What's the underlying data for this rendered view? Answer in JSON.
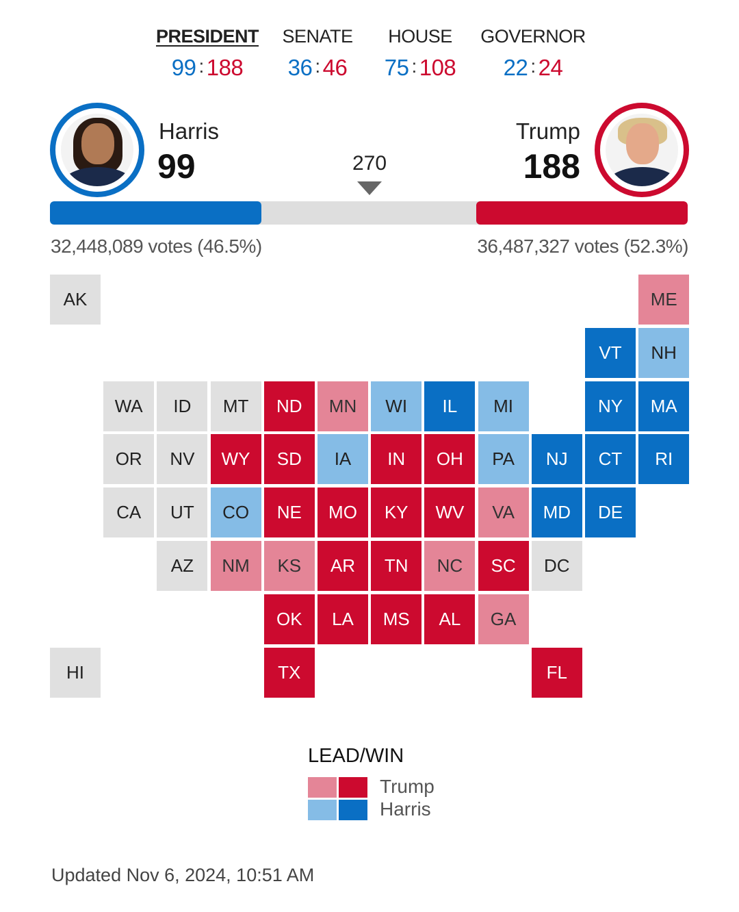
{
  "tabs": [
    {
      "label": "PRESIDENT",
      "dem": "99",
      "rep": "188",
      "active": true
    },
    {
      "label": "SENATE",
      "dem": "36",
      "rep": "46"
    },
    {
      "label": "HOUSE",
      "dem": "75",
      "rep": "108"
    },
    {
      "label": "GOVERNOR",
      "dem": "22",
      "rep": "24"
    }
  ],
  "candidates": {
    "dem": {
      "name": "Harris",
      "electoral_votes": "99",
      "popular": "32,448,089 votes (46.5%)"
    },
    "rep": {
      "name": "Trump",
      "electoral_votes": "188",
      "popular": "36,487,327 votes (52.3%)"
    }
  },
  "threshold": "270",
  "bar": {
    "total": 538,
    "dem": 99,
    "rep": 188
  },
  "colors": {
    "dem_win": "#0a6fc4",
    "dem_lead": "#85bce6",
    "rep_win": "#cc0a2f",
    "rep_lead": "#e48597",
    "none": "#e0e0e0"
  },
  "states": [
    {
      "abbr": "AK",
      "status": "none"
    },
    {
      "abbr": "ME",
      "status": "rep_lead"
    },
    {
      "abbr": "VT",
      "status": "dem_win"
    },
    {
      "abbr": "NH",
      "status": "dem_lead"
    },
    {
      "abbr": "WA",
      "status": "none"
    },
    {
      "abbr": "ID",
      "status": "none"
    },
    {
      "abbr": "MT",
      "status": "none"
    },
    {
      "abbr": "ND",
      "status": "rep_win"
    },
    {
      "abbr": "MN",
      "status": "rep_lead"
    },
    {
      "abbr": "WI",
      "status": "dem_lead"
    },
    {
      "abbr": "IL",
      "status": "dem_win"
    },
    {
      "abbr": "MI",
      "status": "dem_lead"
    },
    {
      "abbr": "NY",
      "status": "dem_win"
    },
    {
      "abbr": "MA",
      "status": "dem_win"
    },
    {
      "abbr": "OR",
      "status": "none"
    },
    {
      "abbr": "NV",
      "status": "none"
    },
    {
      "abbr": "WY",
      "status": "rep_win"
    },
    {
      "abbr": "SD",
      "status": "rep_win"
    },
    {
      "abbr": "IA",
      "status": "dem_lead"
    },
    {
      "abbr": "IN",
      "status": "rep_win"
    },
    {
      "abbr": "OH",
      "status": "rep_win"
    },
    {
      "abbr": "PA",
      "status": "dem_lead"
    },
    {
      "abbr": "NJ",
      "status": "dem_win"
    },
    {
      "abbr": "CT",
      "status": "dem_win"
    },
    {
      "abbr": "RI",
      "status": "dem_win"
    },
    {
      "abbr": "CA",
      "status": "none"
    },
    {
      "abbr": "UT",
      "status": "none"
    },
    {
      "abbr": "CO",
      "status": "dem_lead"
    },
    {
      "abbr": "NE",
      "status": "rep_win"
    },
    {
      "abbr": "MO",
      "status": "rep_win"
    },
    {
      "abbr": "KY",
      "status": "rep_win"
    },
    {
      "abbr": "WV",
      "status": "rep_win"
    },
    {
      "abbr": "VA",
      "status": "rep_lead"
    },
    {
      "abbr": "MD",
      "status": "dem_win"
    },
    {
      "abbr": "DE",
      "status": "dem_win"
    },
    {
      "abbr": "AZ",
      "status": "none"
    },
    {
      "abbr": "NM",
      "status": "rep_lead"
    },
    {
      "abbr": "KS",
      "status": "rep_lead"
    },
    {
      "abbr": "AR",
      "status": "rep_win"
    },
    {
      "abbr": "TN",
      "status": "rep_win"
    },
    {
      "abbr": "NC",
      "status": "rep_lead"
    },
    {
      "abbr": "SC",
      "status": "rep_win"
    },
    {
      "abbr": "DC",
      "status": "none"
    },
    {
      "abbr": "OK",
      "status": "rep_win"
    },
    {
      "abbr": "LA",
      "status": "rep_win"
    },
    {
      "abbr": "MS",
      "status": "rep_win"
    },
    {
      "abbr": "AL",
      "status": "rep_win"
    },
    {
      "abbr": "GA",
      "status": "rep_lead"
    },
    {
      "abbr": "HI",
      "status": "none"
    },
    {
      "abbr": "TX",
      "status": "rep_win"
    },
    {
      "abbr": "FL",
      "status": "rep_win"
    }
  ],
  "legend": {
    "title": "LEAD/WIN",
    "rep": "Trump",
    "dem": "Harris"
  },
  "updated": "Updated Nov 6, 2024, 10:51 AM"
}
